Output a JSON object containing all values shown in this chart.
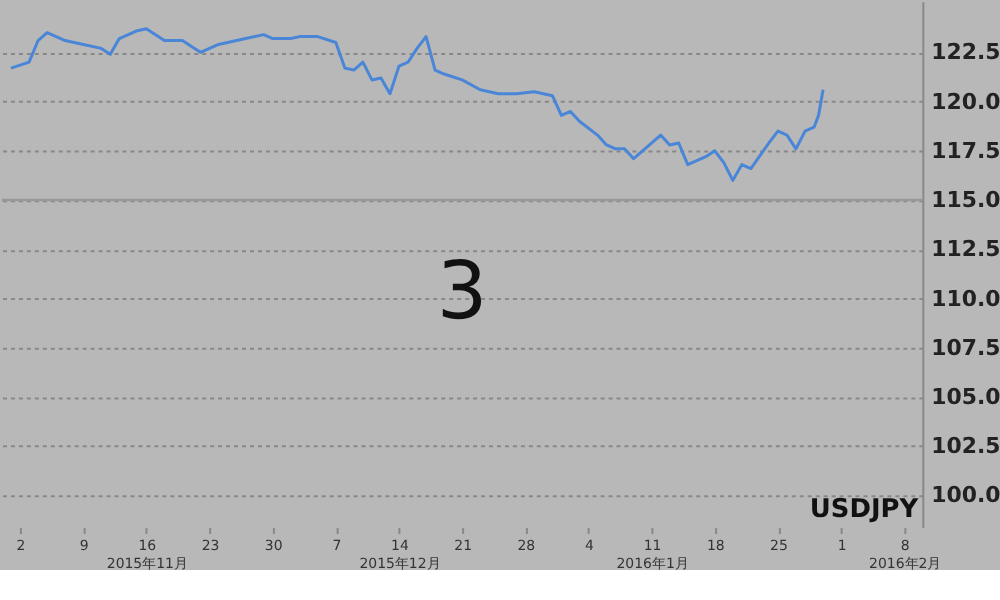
{
  "chart_data": {
    "type": "line",
    "title": "USDJPY",
    "annotations": [
      "3"
    ],
    "x": [
      "2015-11-01",
      "2015-11-03",
      "2015-11-04",
      "2015-11-05",
      "2015-11-07",
      "2015-11-08",
      "2015-11-11",
      "2015-11-12",
      "2015-11-13",
      "2015-11-15",
      "2015-11-16",
      "2015-11-18",
      "2015-11-20",
      "2015-11-21",
      "2015-11-22",
      "2015-11-24",
      "2015-11-26",
      "2015-11-27",
      "2015-11-29",
      "2015-11-30",
      "2015-12-02",
      "2015-12-03",
      "2015-12-05",
      "2015-12-07",
      "2015-12-08",
      "2015-12-09",
      "2015-12-10",
      "2015-12-11",
      "2015-12-12",
      "2015-12-13",
      "2015-12-14",
      "2015-12-15",
      "2015-12-16",
      "2015-12-17",
      "2015-12-18",
      "2015-12-19",
      "2015-12-21",
      "2015-12-23",
      "2015-12-25",
      "2015-12-27",
      "2015-12-29",
      "2015-12-31",
      "2016-01-01",
      "2016-01-02",
      "2016-01-03",
      "2016-01-05",
      "2016-01-06",
      "2016-01-07",
      "2016-01-08",
      "2016-01-09",
      "2016-01-10",
      "2016-01-12",
      "2016-01-13",
      "2016-01-14",
      "2016-01-15",
      "2016-01-17",
      "2016-01-18",
      "2016-01-19",
      "2016-01-20",
      "2016-01-21",
      "2016-01-22",
      "2016-01-24",
      "2016-01-25",
      "2016-01-26",
      "2016-01-27",
      "2016-01-28",
      "2016-01-29",
      "2016-01-29T12:00",
      "2016-01-30"
    ],
    "series": [
      {
        "color": "#4a86d8",
        "values": [
          121.7,
          122.0,
          123.1,
          123.5,
          123.1,
          123.0,
          122.7,
          122.4,
          123.2,
          123.6,
          123.7,
          123.1,
          123.1,
          122.8,
          122.5,
          122.9,
          123.1,
          123.2,
          123.4,
          123.2,
          123.2,
          123.3,
          123.3,
          123.0,
          121.7,
          121.6,
          122.0,
          121.1,
          121.2,
          120.4,
          121.8,
          122.0,
          122.7,
          123.3,
          121.6,
          121.4,
          121.1,
          120.6,
          120.4,
          120.4,
          120.5,
          120.3,
          119.3,
          119.5,
          119.0,
          118.3,
          117.8,
          117.6,
          117.6,
          117.1,
          117.5,
          118.3,
          117.8,
          117.9,
          116.8,
          117.2,
          117.5,
          116.9,
          116.0,
          116.8,
          116.6,
          117.9,
          118.5,
          118.3,
          117.6,
          118.5,
          118.7,
          119.3,
          120.6
        ]
      }
    ],
    "xlim": [
      "2015-10-31",
      "2016-02-10"
    ],
    "xticks": [
      {
        "value": "2015-11-02",
        "label": "2"
      },
      {
        "value": "2015-11-09",
        "label": "9"
      },
      {
        "value": "2015-11-16",
        "label": "16\n2015年11月"
      },
      {
        "value": "2015-11-23",
        "label": "23"
      },
      {
        "value": "2015-11-30",
        "label": "30"
      },
      {
        "value": "2015-12-07",
        "label": "7"
      },
      {
        "value": "2015-12-14",
        "label": "14\n2015年12月"
      },
      {
        "value": "2015-12-21",
        "label": "21"
      },
      {
        "value": "2015-12-28",
        "label": "28"
      },
      {
        "value": "2016-01-04",
        "label": "4"
      },
      {
        "value": "2016-01-11",
        "label": "11\n2016年1月"
      },
      {
        "value": "2016-01-18",
        "label": "18"
      },
      {
        "value": "2016-01-25",
        "label": "25"
      },
      {
        "value": "2016-02-01",
        "label": "1"
      },
      {
        "value": "2016-02-08",
        "label": "8\n2016年2月"
      }
    ],
    "ylim": [
      98.4,
      125.1
    ],
    "yticks": [
      {
        "value": 100,
        "label": "100.0"
      },
      {
        "value": 102.5,
        "label": "102.5"
      },
      {
        "value": 105,
        "label": "105.0"
      },
      {
        "value": 107.5,
        "label": "107.5"
      },
      {
        "value": 110,
        "label": "110.0"
      },
      {
        "value": 112.5,
        "label": "112.5"
      },
      {
        "value": 115,
        "label": "115.0"
      },
      {
        "value": 117.5,
        "label": "117.5"
      },
      {
        "value": 120,
        "label": "120.0"
      },
      {
        "value": 122.5,
        "label": "122.5"
      }
    ],
    "grid": "y",
    "legend": false,
    "marker": "none",
    "line_style": "solid",
    "ref_lines": [
      {
        "axis": "y",
        "value": 115,
        "label": null,
        "color": "#999999",
        "line_style": "solid"
      }
    ]
  }
}
